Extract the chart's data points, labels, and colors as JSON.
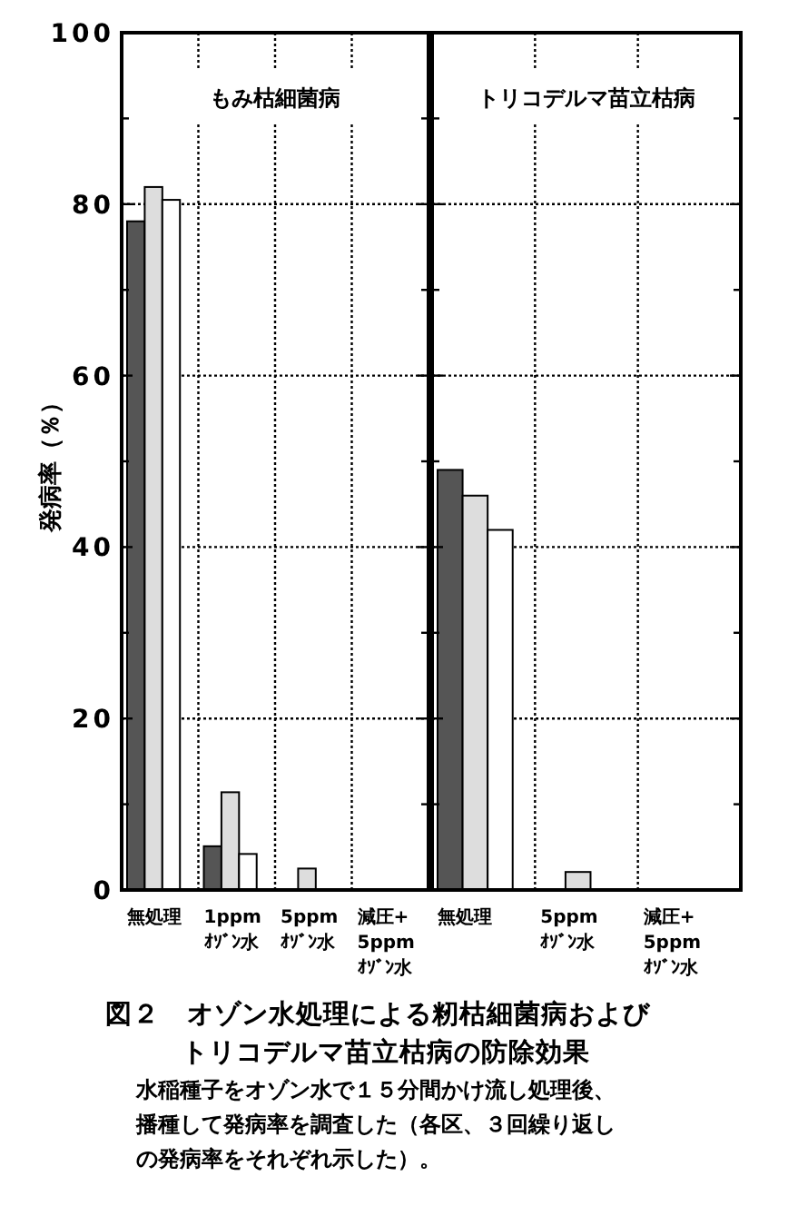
{
  "chart_data": [
    {
      "type": "bar",
      "title": "もみ枯細菌病",
      "ylabel": "発病率（％）",
      "categories": [
        "無処理",
        "1ppm ｵｿﾞﾝ水",
        "5ppm ｵｿﾞﾝ水",
        "減圧+ 5ppm ｵｿﾞﾝ水"
      ],
      "series": [
        {
          "color": "#555555",
          "values": [
            78,
            5.1,
            0,
            0
          ]
        },
        {
          "color": "#dddddd",
          "values": [
            82,
            11.4,
            2.5,
            0
          ]
        },
        {
          "color": "#ffffff",
          "values": [
            80.5,
            4.2,
            0,
            0
          ]
        }
      ],
      "ylim": [
        0,
        100
      ],
      "yticks": [
        0,
        {
          "value": 10,
          "label": null
        },
        20,
        {
          "value": 30,
          "label": null
        },
        40,
        {
          "value": 50,
          "label": null
        },
        60,
        {
          "value": 70,
          "label": null
        },
        80,
        {
          "value": 90,
          "label": null
        },
        100
      ],
      "grid": true,
      "annotations": [
        "図２　オゾン水処理による籾枯細菌病および",
        "トリコデルマ苗立枯病の防除効果",
        "水稲種子をオゾン水で１５分間かけ流し処理後、",
        "播種して発病率を調査した（各区、３回繰り返し",
        "の発病率をそれぞれ示した）。"
      ]
    },
    {
      "type": "bar",
      "title": "トリコデルマ苗立枯病",
      "categories": [
        "無処理",
        "5ppm ｵｿﾞﾝ水",
        "減圧+ 5ppm ｵｿﾞﾝ水"
      ],
      "series": [
        {
          "color": "#555555",
          "values": [
            49,
            0,
            0
          ]
        },
        {
          "color": "#dddddd",
          "values": [
            46,
            2.1,
            0
          ]
        },
        {
          "color": "#ffffff",
          "values": [
            42,
            0,
            0
          ]
        }
      ],
      "ylim": [
        0,
        100
      ],
      "yticks": [
        0,
        {
          "value": 10,
          "label": null
        },
        20,
        {
          "value": 30,
          "label": null
        },
        40,
        {
          "value": 50,
          "label": null
        },
        60,
        {
          "value": 70,
          "label": null
        },
        80,
        {
          "value": 90,
          "label": null
        },
        100
      ],
      "grid": true,
      "tick_labels": "x"
    }
  ]
}
